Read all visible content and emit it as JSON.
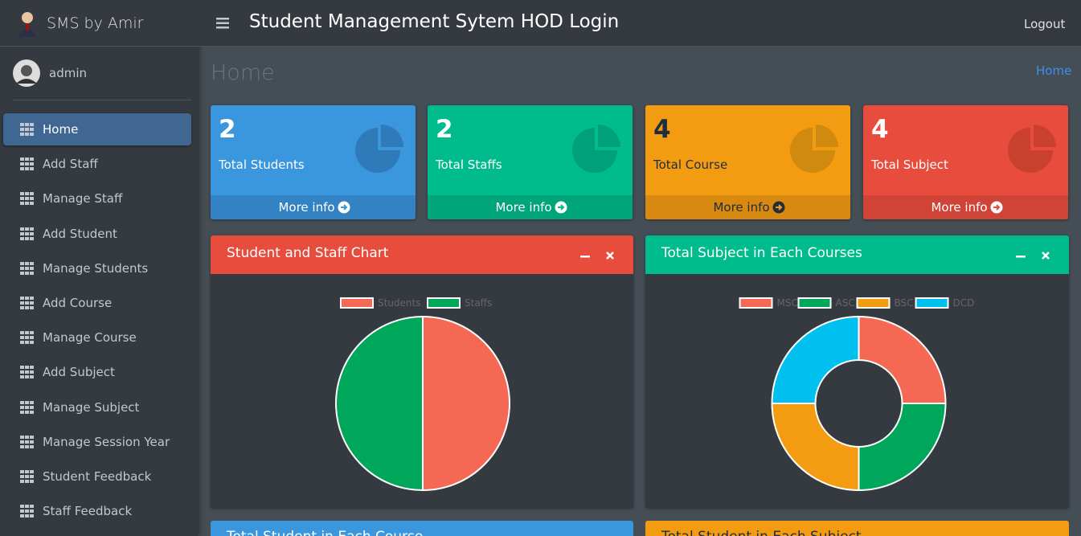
{
  "brand": "SMS by Amir",
  "user": "admin",
  "header_title": "Student Management Sytem HOD Login",
  "logout": "Logout",
  "page_title": "Home",
  "breadcrumb": "Home",
  "menu": [
    "Home",
    "Add Staff",
    "Manage Staff",
    "Add Student",
    "Manage Students",
    "Add Course",
    "Manage Course",
    "Add Subject",
    "Manage Subject",
    "Manage Session Year",
    "Student Feedback",
    "Staff Feedback"
  ],
  "stats": [
    {
      "value": 2,
      "label": "Total Students",
      "link": "More info"
    },
    {
      "value": 2,
      "label": "Total Staffs",
      "link": "More info"
    },
    {
      "value": 4,
      "label": "Total Course",
      "link": "More info"
    },
    {
      "value": 4,
      "label": "Total Subject",
      "link": "More info"
    }
  ],
  "charts": [
    {
      "type": "pie",
      "title": "Student and Staff Chart",
      "categories": [
        "Students",
        "Staffs"
      ],
      "values": [
        2,
        2
      ],
      "colors": [
        "#f56954",
        "#00a65a"
      ]
    },
    {
      "type": "doughnut",
      "title": "Total Subject in Each Courses",
      "categories": [
        "MSC",
        "ASC",
        "BSC",
        "DCD"
      ],
      "values": [
        1,
        1,
        1,
        1
      ],
      "colors": [
        "#f56954",
        "#00a65a",
        "#f39c12",
        "#00c0ef"
      ]
    }
  ],
  "bottom_panels": [
    "Total Student in Each Course",
    "Total Student in Each Subject"
  ]
}
